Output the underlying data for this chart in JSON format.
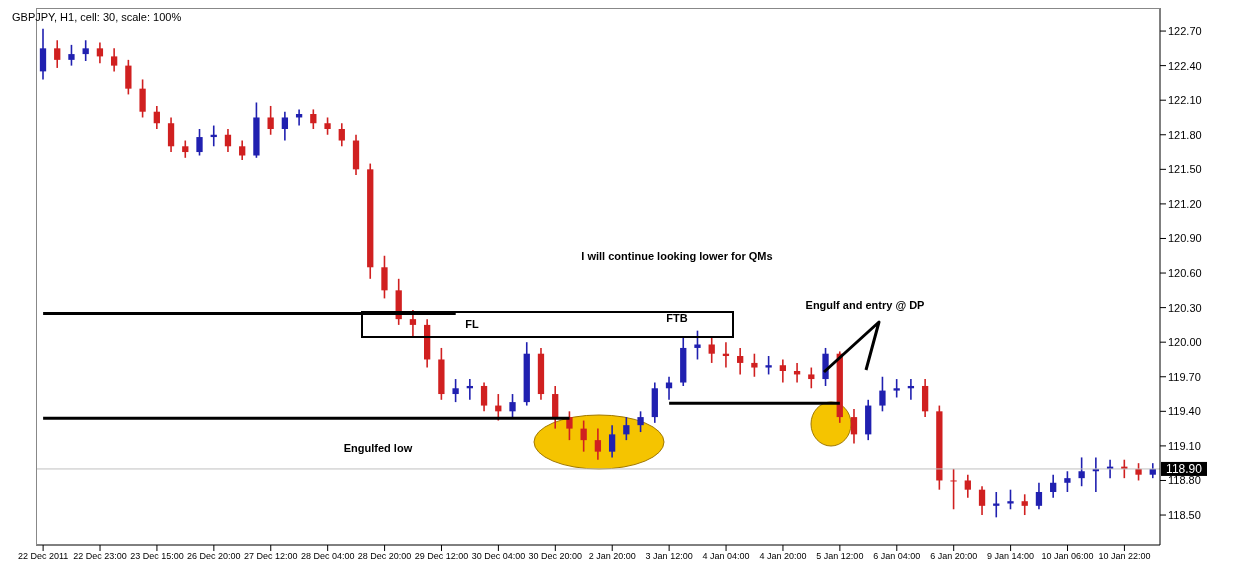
{
  "chart_data": {
    "type": "candlestick",
    "title": "GBPJPY, H1, cell: 30, scale: 100%",
    "categories": [
      "22 Dec 2011",
      null,
      null,
      null,
      "22 Dec 23:00",
      null,
      null,
      null,
      "23 Dec 15:00",
      null,
      null,
      null,
      "26 Dec 20:00",
      null,
      null,
      null,
      "27 Dec 12:00",
      null,
      null,
      null,
      "28 Dec 04:00",
      null,
      null,
      null,
      "28 Dec 20:00",
      null,
      null,
      null,
      "29 Dec 12:00",
      null,
      null,
      null,
      "30 Dec 04:00",
      null,
      null,
      null,
      "30 Dec 20:00",
      null,
      null,
      null,
      "2 Jan 20:00",
      null,
      null,
      null,
      "3 Jan 12:00",
      null,
      null,
      null,
      "4 Jan 04:00",
      null,
      null,
      null,
      "4 Jan 20:00",
      null,
      null,
      null,
      "5 Jan 12:00",
      null,
      null,
      null,
      "6 Jan 04:00",
      null,
      null,
      null,
      "6 Jan 20:00",
      null,
      null,
      null,
      "9 Jan 14:00",
      null,
      null,
      null,
      "10 Jan 06:00",
      null,
      null,
      null,
      "10 Jan 22:00",
      null,
      null
    ],
    "ohlc": [
      [
        122.35,
        122.72,
        122.28,
        122.55
      ],
      [
        122.55,
        122.62,
        122.38,
        122.45
      ],
      [
        122.45,
        122.58,
        122.4,
        122.5
      ],
      [
        122.5,
        122.62,
        122.44,
        122.55
      ],
      [
        122.55,
        122.6,
        122.42,
        122.48
      ],
      [
        122.48,
        122.55,
        122.35,
        122.4
      ],
      [
        122.4,
        122.45,
        122.15,
        122.2
      ],
      [
        122.2,
        122.28,
        121.95,
        122.0
      ],
      [
        122.0,
        122.05,
        121.85,
        121.9
      ],
      [
        121.9,
        121.95,
        121.65,
        121.7
      ],
      [
        121.7,
        121.75,
        121.6,
        121.65
      ],
      [
        121.65,
        121.85,
        121.62,
        121.78
      ],
      [
        121.78,
        121.88,
        121.7,
        121.8
      ],
      [
        121.8,
        121.85,
        121.65,
        121.7
      ],
      [
        121.7,
        121.75,
        121.58,
        121.62
      ],
      [
        121.62,
        122.08,
        121.6,
        121.95
      ],
      [
        121.95,
        122.05,
        121.8,
        121.85
      ],
      [
        121.85,
        122.0,
        121.75,
        121.95
      ],
      [
        121.95,
        122.02,
        121.88,
        121.98
      ],
      [
        121.98,
        122.02,
        121.85,
        121.9
      ],
      [
        121.9,
        121.95,
        121.8,
        121.85
      ],
      [
        121.85,
        121.9,
        121.7,
        121.75
      ],
      [
        121.75,
        121.8,
        121.45,
        121.5
      ],
      [
        121.5,
        121.55,
        120.55,
        120.65
      ],
      [
        120.65,
        120.75,
        120.38,
        120.45
      ],
      [
        120.45,
        120.55,
        120.15,
        120.2
      ],
      [
        120.2,
        120.28,
        120.05,
        120.15
      ],
      [
        120.15,
        120.2,
        119.78,
        119.85
      ],
      [
        119.85,
        119.95,
        119.5,
        119.55
      ],
      [
        119.55,
        119.68,
        119.48,
        119.6
      ],
      [
        119.6,
        119.68,
        119.5,
        119.62
      ],
      [
        119.62,
        119.65,
        119.4,
        119.45
      ],
      [
        119.45,
        119.55,
        119.32,
        119.4
      ],
      [
        119.4,
        119.55,
        119.35,
        119.48
      ],
      [
        119.48,
        120.0,
        119.45,
        119.9
      ],
      [
        119.9,
        119.95,
        119.5,
        119.55
      ],
      [
        119.55,
        119.62,
        119.25,
        119.35
      ],
      [
        119.35,
        119.4,
        119.15,
        119.25
      ],
      [
        119.25,
        119.32,
        119.05,
        119.15
      ],
      [
        119.15,
        119.25,
        118.98,
        119.05
      ],
      [
        119.05,
        119.28,
        119.0,
        119.2
      ],
      [
        119.2,
        119.35,
        119.15,
        119.28
      ],
      [
        119.28,
        119.4,
        119.22,
        119.35
      ],
      [
        119.35,
        119.65,
        119.3,
        119.6
      ],
      [
        119.6,
        119.7,
        119.5,
        119.65
      ],
      [
        119.65,
        120.05,
        119.62,
        119.95
      ],
      [
        119.95,
        120.1,
        119.85,
        119.98
      ],
      [
        119.98,
        120.05,
        119.82,
        119.9
      ],
      [
        119.9,
        120.0,
        119.78,
        119.88
      ],
      [
        119.88,
        119.95,
        119.72,
        119.82
      ],
      [
        119.82,
        119.9,
        119.7,
        119.78
      ],
      [
        119.78,
        119.88,
        119.72,
        119.8
      ],
      [
        119.8,
        119.85,
        119.65,
        119.75
      ],
      [
        119.75,
        119.82,
        119.65,
        119.72
      ],
      [
        119.72,
        119.78,
        119.6,
        119.68
      ],
      [
        119.68,
        119.95,
        119.62,
        119.9
      ],
      [
        119.9,
        119.92,
        119.3,
        119.35
      ],
      [
        119.35,
        119.42,
        119.12,
        119.2
      ],
      [
        119.2,
        119.5,
        119.15,
        119.45
      ],
      [
        119.45,
        119.7,
        119.4,
        119.58
      ],
      [
        119.58,
        119.68,
        119.52,
        119.6
      ],
      [
        119.6,
        119.68,
        119.5,
        119.62
      ],
      [
        119.62,
        119.68,
        119.35,
        119.4
      ],
      [
        119.4,
        119.45,
        118.72,
        118.8
      ],
      [
        118.8,
        118.9,
        118.55,
        118.8
      ],
      [
        118.8,
        118.85,
        118.65,
        118.72
      ],
      [
        118.72,
        118.75,
        118.5,
        118.58
      ],
      [
        118.58,
        118.7,
        118.48,
        118.6
      ],
      [
        118.6,
        118.72,
        118.55,
        118.62
      ],
      [
        118.62,
        118.68,
        118.5,
        118.58
      ],
      [
        118.58,
        118.78,
        118.55,
        118.7
      ],
      [
        118.7,
        118.85,
        118.65,
        118.78
      ],
      [
        118.78,
        118.88,
        118.7,
        118.82
      ],
      [
        118.82,
        119.0,
        118.75,
        118.88
      ],
      [
        118.88,
        119.0,
        118.7,
        118.9
      ],
      [
        118.9,
        118.98,
        118.82,
        118.92
      ],
      [
        118.92,
        118.98,
        118.82,
        118.9
      ],
      [
        118.9,
        118.95,
        118.8,
        118.85
      ],
      [
        118.85,
        118.95,
        118.82,
        118.9
      ]
    ],
    "colors": [
      "#2020b0",
      "#d02020",
      "#2020b0",
      "#2020b0",
      "#d02020",
      "#d02020",
      "#d02020",
      "#d02020",
      "#d02020",
      "#d02020",
      "#d02020",
      "#2020b0",
      "#2020b0",
      "#d02020",
      "#d02020",
      "#2020b0",
      "#d02020",
      "#2020b0",
      "#2020b0",
      "#d02020",
      "#d02020",
      "#d02020",
      "#d02020",
      "#d02020",
      "#d02020",
      "#d02020",
      "#d02020",
      "#d02020",
      "#d02020",
      "#2020b0",
      "#2020b0",
      "#d02020",
      "#d02020",
      "#2020b0",
      "#2020b0",
      "#d02020",
      "#d02020",
      "#d02020",
      "#d02020",
      "#d02020",
      "#2020b0",
      "#2020b0",
      "#2020b0",
      "#2020b0",
      "#2020b0",
      "#2020b0",
      "#2020b0",
      "#d02020",
      "#d02020",
      "#d02020",
      "#d02020",
      "#2020b0",
      "#d02020",
      "#d02020",
      "#d02020",
      "#2020b0",
      "#d02020",
      "#d02020",
      "#2020b0",
      "#2020b0",
      "#2020b0",
      "#2020b0",
      "#d02020",
      "#d02020",
      "#d02020",
      "#d02020",
      "#d02020",
      "#2020b0",
      "#2020b0",
      "#d02020",
      "#2020b0",
      "#2020b0",
      "#2020b0",
      "#2020b0",
      "#2020b0",
      "#2020b0",
      "#d02020",
      "#d02020",
      "#2020b0"
    ],
    "series": [
      {
        "type": "line",
        "color": "#000000",
        "values": [
          120.25,
          120.25,
          120.25,
          120.25,
          120.25,
          120.25,
          120.25,
          120.25,
          120.25,
          120.25,
          120.25,
          120.25,
          120.25,
          120.25,
          120.25,
          120.25,
          120.25,
          120.25,
          120.25,
          120.25,
          120.25,
          120.25,
          120.25,
          120.25,
          120.25,
          120.25,
          120.25,
          120.25,
          120.25,
          120.25,
          null,
          null,
          null,
          null,
          null,
          null,
          null,
          null,
          null,
          null,
          null,
          null,
          null,
          null,
          null,
          null,
          null,
          null,
          null,
          null,
          null,
          null,
          null,
          null,
          null,
          null,
          null,
          null,
          null,
          null,
          null,
          null,
          null,
          null,
          null,
          null,
          null,
          null,
          null,
          null,
          null,
          null,
          null,
          null,
          null,
          null,
          null,
          null,
          null
        ]
      },
      {
        "type": "line",
        "color": "#000000",
        "values": [
          119.34,
          119.34,
          119.34,
          119.34,
          119.34,
          119.34,
          119.34,
          119.34,
          119.34,
          119.34,
          119.34,
          119.34,
          119.34,
          119.34,
          119.34,
          119.34,
          119.34,
          119.34,
          119.34,
          119.34,
          119.34,
          119.34,
          119.34,
          119.34,
          119.34,
          119.34,
          119.34,
          119.34,
          119.34,
          119.34,
          119.34,
          119.34,
          119.34,
          119.34,
          119.34,
          119.34,
          119.34,
          119.34,
          null,
          null,
          null,
          null,
          null,
          null,
          null,
          null,
          null,
          null,
          null,
          null,
          null,
          null,
          null,
          null,
          null,
          null,
          null,
          null,
          null,
          null,
          null,
          null,
          null,
          null,
          null,
          null,
          null,
          null,
          null,
          null,
          null,
          null,
          null,
          null,
          null,
          null,
          null,
          null,
          null
        ]
      },
      {
        "type": "line",
        "color": "#000000",
        "values": [
          null,
          null,
          null,
          null,
          null,
          null,
          null,
          null,
          null,
          null,
          null,
          null,
          null,
          null,
          null,
          null,
          null,
          null,
          null,
          null,
          null,
          null,
          null,
          null,
          null,
          null,
          null,
          null,
          null,
          null,
          null,
          null,
          null,
          null,
          null,
          null,
          null,
          null,
          null,
          null,
          null,
          null,
          null,
          null,
          119.47,
          119.47,
          119.47,
          119.47,
          119.47,
          119.47,
          119.47,
          119.47,
          119.47,
          119.47,
          119.47,
          119.47,
          119.47,
          null,
          null,
          null,
          null,
          null,
          null,
          null,
          null,
          null,
          null,
          null,
          null,
          null,
          null,
          null,
          null,
          null,
          null,
          null,
          null,
          null,
          null
        ]
      }
    ],
    "ylim": [
      118.24,
      122.9
    ],
    "yticks": [
      {
        "value": 118.5,
        "label": "118.50"
      },
      {
        "value": 118.8,
        "label": "118.80"
      },
      {
        "value": 119.1,
        "label": "119.10"
      },
      {
        "value": 119.4,
        "label": "119.40"
      },
      {
        "value": 119.7,
        "label": "119.70"
      },
      {
        "value": 120.0,
        "label": "120.00"
      },
      {
        "value": 120.3,
        "label": "120.30"
      },
      {
        "value": 120.6,
        "label": "120.60"
      },
      {
        "value": 120.9,
        "label": "120.90"
      },
      {
        "value": 121.2,
        "label": "121.20"
      },
      {
        "value": 121.5,
        "label": "121.50"
      },
      {
        "value": 121.8,
        "label": "121.80"
      },
      {
        "value": 122.1,
        "label": "122.10"
      },
      {
        "value": 122.4,
        "label": "122.40"
      },
      {
        "value": 122.7,
        "label": "122.70"
      }
    ],
    "ref_lines": [
      {
        "axis": "y",
        "value": 118.9,
        "label": "118.90",
        "color": "#c0c0c0"
      }
    ],
    "annotations": [
      "I will continue looking lower for QMs",
      "FL",
      "FTB",
      "Engulfed low",
      "Engulf and entry @ DP"
    ]
  }
}
